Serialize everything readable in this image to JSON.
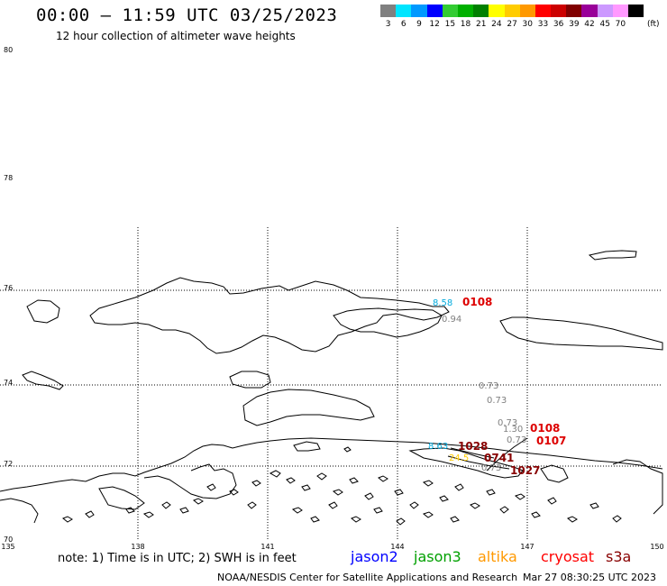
{
  "header": {
    "title": "00:00 – 11:59 UTC 03/25/2023",
    "subtitle": "12 hour collection of altimeter wave heights"
  },
  "legend": {
    "unit": "(ft)",
    "items": [
      {
        "label": "3",
        "color": "#808080"
      },
      {
        "label": "6",
        "color": "#00e5ff"
      },
      {
        "label": "9",
        "color": "#0099ff"
      },
      {
        "label": "12",
        "color": "#0000ff"
      },
      {
        "label": "15",
        "color": "#33cc33"
      },
      {
        "label": "18",
        "color": "#00b000"
      },
      {
        "label": "21",
        "color": "#008000"
      },
      {
        "label": "24",
        "color": "#ffff00"
      },
      {
        "label": "27",
        "color": "#ffcc00"
      },
      {
        "label": "30",
        "color": "#ff9900"
      },
      {
        "label": "33",
        "color": "#ff0000"
      },
      {
        "label": "36",
        "color": "#cc0000"
      },
      {
        "label": "39",
        "color": "#800000"
      },
      {
        "label": "42",
        "color": "#990099"
      },
      {
        "label": "45",
        "color": "#cc99ff"
      },
      {
        "label": "70",
        "color": "#ff99ff"
      },
      {
        "label": "",
        "color": "#000000"
      }
    ]
  },
  "map": {
    "lat_labels": [
      "80",
      "78",
      "76",
      "74",
      "72",
      "70"
    ],
    "lon_labels": [
      "135",
      "138",
      "141",
      "144",
      "147",
      "150"
    ],
    "observations": [
      {
        "text": "8.58",
        "color": "#00aadd"
      },
      {
        "text": "0.94",
        "color": "#808080"
      },
      {
        "text": "0.73",
        "color": "#808080"
      },
      {
        "text": "0.73",
        "color": "#808080"
      },
      {
        "text": "0.73",
        "color": "#808080"
      },
      {
        "text": "1.30",
        "color": "#808080"
      },
      {
        "text": "0.73",
        "color": "#808080"
      },
      {
        "text": "8.63",
        "color": "#00aadd"
      },
      {
        "text": "24.5",
        "color": "#ffcc00"
      },
      {
        "text": "0.73",
        "color": "#808080"
      }
    ],
    "pass_times": [
      {
        "text": "0108",
        "color": "#dd0000"
      },
      {
        "text": "0108",
        "color": "#dd0000"
      },
      {
        "text": "0107",
        "color": "#dd0000"
      },
      {
        "text": "1028",
        "color": "#880000"
      },
      {
        "text": "0741",
        "color": "#880000"
      },
      {
        "text": "1027",
        "color": "#880000"
      }
    ]
  },
  "footer": {
    "note": "note:  1) Time is in UTC;  2) SWH is in feet",
    "satellites": [
      {
        "name": "jason2",
        "color": "#0000ff"
      },
      {
        "name": "jason3",
        "color": "#00a000"
      },
      {
        "name": "altika",
        "color": "#ff9900"
      },
      {
        "name": "cryosat",
        "color": "#ff0000"
      },
      {
        "name": "s3a",
        "color": "#880000"
      }
    ],
    "credit": "NOAA/NESDIS Center for Satellite Applications and Research",
    "timestamp": "Mar 27 08:30:25 UTC 2023"
  }
}
